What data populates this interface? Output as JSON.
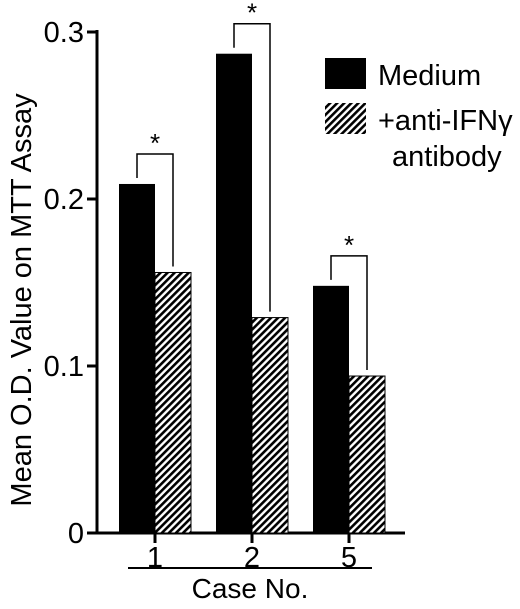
{
  "chart_data": {
    "type": "bar",
    "title": "",
    "xlabel": "Case No.",
    "ylabel": "Mean O.D. Value on MTT Assay",
    "categories": [
      "1",
      "2",
      "5"
    ],
    "ylim": [
      0,
      0.3
    ],
    "yticks": [
      "0",
      "0.1",
      "0.2",
      "0.3"
    ],
    "series": [
      {
        "name": "Medium",
        "values": [
          0.209,
          0.287,
          0.148
        ],
        "fill": "solid",
        "color": "#000000"
      },
      {
        "name": "+anti-IFNγ antibody",
        "values": [
          0.156,
          0.129,
          0.094
        ],
        "fill": "hatched",
        "color": "#000000"
      }
    ],
    "significance_marker": "*",
    "legend_position": "top-right",
    "grid": false
  }
}
